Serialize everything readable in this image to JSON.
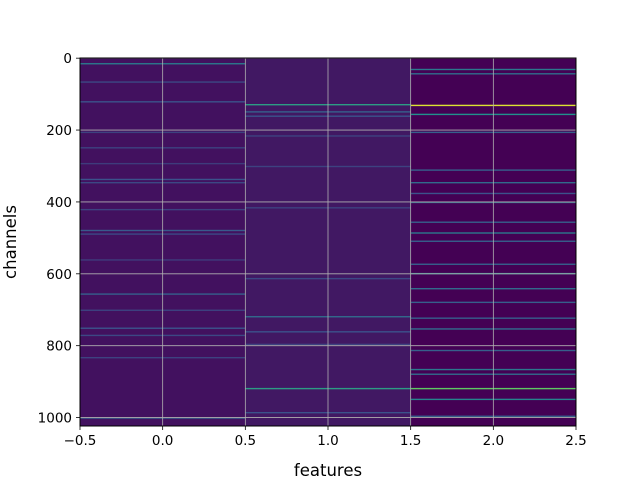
{
  "chart_data": {
    "type": "heatmap",
    "title": "",
    "xlabel": "features",
    "ylabel": "channels",
    "xlim": [
      -0.5,
      2.5
    ],
    "ylim": [
      1023.5,
      -0.5
    ],
    "y_inverted": true,
    "n_columns": 3,
    "n_rows": 1024,
    "colormap": "viridis",
    "grid": true,
    "x_ticks": [
      -0.5,
      0.0,
      0.5,
      1.0,
      1.5,
      2.0,
      2.5
    ],
    "x_tick_labels": [
      "−0.5",
      "0.0",
      "0.5",
      "1.0",
      "1.5",
      "2.0",
      "2.5"
    ],
    "y_ticks": [
      0,
      200,
      400,
      600,
      800,
      1000
    ],
    "y_tick_labels": [
      "0",
      "200",
      "400",
      "600",
      "800",
      "1000"
    ],
    "columns": [
      {
        "feature": 0,
        "background": 0.05,
        "bands": [
          {
            "row": 14,
            "value": 0.4
          },
          {
            "row": 65,
            "value": 0.22
          },
          {
            "row": 120,
            "value": 0.25
          },
          {
            "row": 205,
            "value": 0.2
          },
          {
            "row": 248,
            "value": 0.2
          },
          {
            "row": 292,
            "value": 0.18
          },
          {
            "row": 336,
            "value": 0.25
          },
          {
            "row": 345,
            "value": 0.22
          },
          {
            "row": 420,
            "value": 0.2
          },
          {
            "row": 478,
            "value": 0.28
          },
          {
            "row": 488,
            "value": 0.22
          },
          {
            "row": 560,
            "value": 0.18
          },
          {
            "row": 655,
            "value": 0.3
          },
          {
            "row": 700,
            "value": 0.2
          },
          {
            "row": 750,
            "value": 0.25
          },
          {
            "row": 770,
            "value": 0.22
          },
          {
            "row": 832,
            "value": 0.2
          },
          {
            "row": 1000,
            "value": 0.3
          }
        ]
      },
      {
        "feature": 1,
        "background": 0.07,
        "bands": [
          {
            "row": 128,
            "value": 0.55
          },
          {
            "row": 148,
            "value": 0.3
          },
          {
            "row": 160,
            "value": 0.25
          },
          {
            "row": 215,
            "value": 0.2
          },
          {
            "row": 300,
            "value": 0.2
          },
          {
            "row": 415,
            "value": 0.2
          },
          {
            "row": 612,
            "value": 0.22
          },
          {
            "row": 718,
            "value": 0.35
          },
          {
            "row": 760,
            "value": 0.25
          },
          {
            "row": 795,
            "value": 0.2
          },
          {
            "row": 918,
            "value": 0.55
          },
          {
            "row": 985,
            "value": 0.25
          }
        ]
      },
      {
        "feature": 2,
        "background": 0.0,
        "bands": [
          {
            "row": 30,
            "value": 0.4
          },
          {
            "row": 42,
            "value": 0.35
          },
          {
            "row": 130,
            "value": 0.95
          },
          {
            "row": 155,
            "value": 0.5
          },
          {
            "row": 205,
            "value": 0.3
          },
          {
            "row": 310,
            "value": 0.3
          },
          {
            "row": 345,
            "value": 0.35
          },
          {
            "row": 375,
            "value": 0.25
          },
          {
            "row": 400,
            "value": 0.35
          },
          {
            "row": 455,
            "value": 0.3
          },
          {
            "row": 485,
            "value": 0.4
          },
          {
            "row": 508,
            "value": 0.3
          },
          {
            "row": 572,
            "value": 0.3
          },
          {
            "row": 598,
            "value": 0.45
          },
          {
            "row": 640,
            "value": 0.35
          },
          {
            "row": 678,
            "value": 0.3
          },
          {
            "row": 722,
            "value": 0.3
          },
          {
            "row": 752,
            "value": 0.35
          },
          {
            "row": 812,
            "value": 0.3
          },
          {
            "row": 865,
            "value": 0.4
          },
          {
            "row": 878,
            "value": 0.35
          },
          {
            "row": 918,
            "value": 0.75
          },
          {
            "row": 948,
            "value": 0.45
          },
          {
            "row": 995,
            "value": 0.3
          }
        ]
      }
    ]
  }
}
